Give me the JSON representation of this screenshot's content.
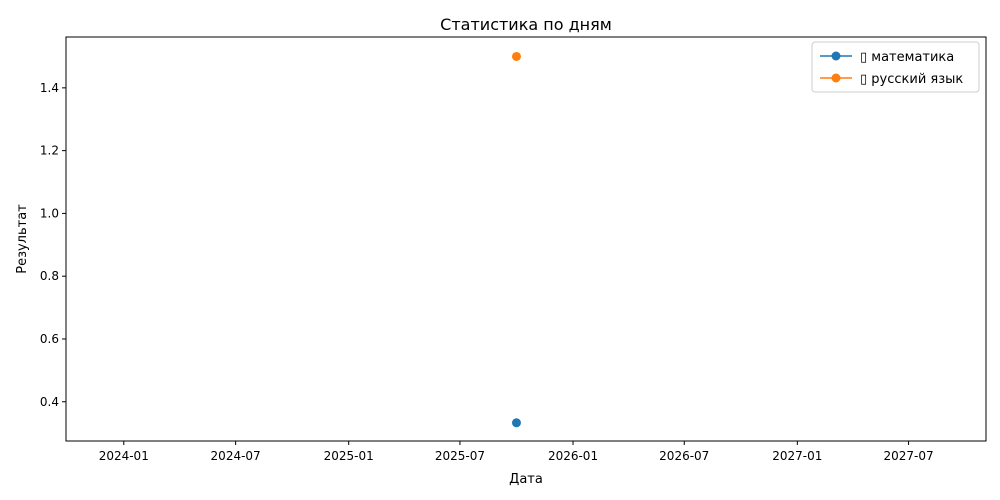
{
  "chart_data": {
    "type": "line",
    "title": "Статистика по дням",
    "xlabel": "Дата",
    "ylabel": "Результат",
    "xlim": [
      "2023-09-29",
      "2027-11-04"
    ],
    "ylim": [
      0.275,
      1.562
    ],
    "x_ticks": [
      "2024-01",
      "2024-07",
      "2025-01",
      "2025-07",
      "2026-01",
      "2026-07",
      "2027-01",
      "2027-07"
    ],
    "y_ticks": [
      0.4,
      0.6,
      0.8,
      1.0,
      1.2,
      1.4
    ],
    "y_tick_labels": [
      "0.4",
      "0.6",
      "0.8",
      "1.0",
      "1.2",
      "1.4"
    ],
    "grid": false,
    "legend_position": "top-right",
    "series": [
      {
        "name": "📐 математика",
        "legend_label": "▯ математика",
        "color": "#1f77b4",
        "marker": "circle",
        "points": [
          {
            "x": "2025-10-01",
            "y": 0.333
          }
        ]
      },
      {
        "name": "📖 русский язык",
        "legend_label": "▯ русский язык",
        "color": "#ff7f0e",
        "marker": "circle",
        "points": [
          {
            "x": "2025-10-01",
            "y": 1.5
          }
        ]
      }
    ]
  }
}
